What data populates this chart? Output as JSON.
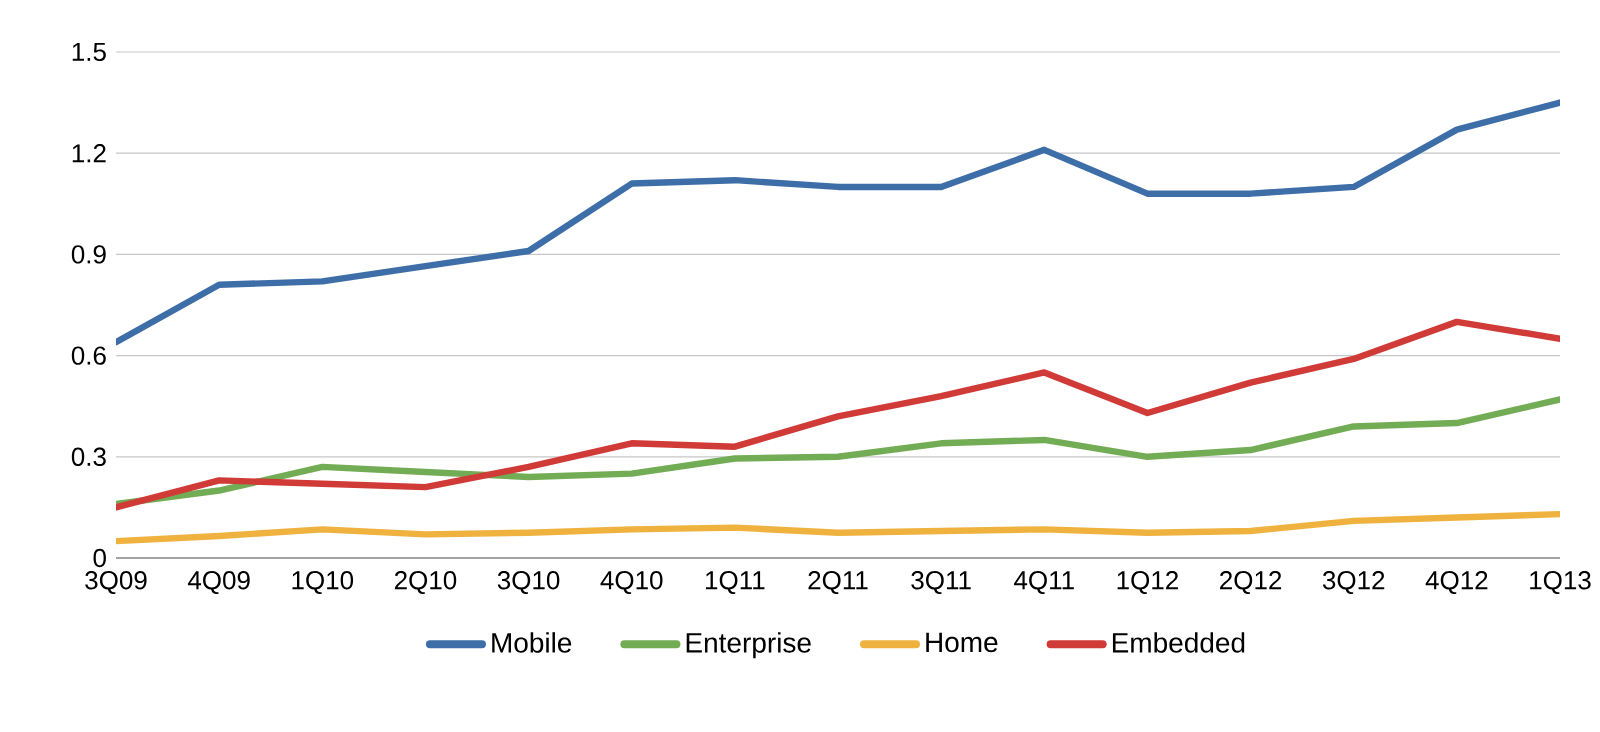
{
  "chart_data": {
    "type": "line",
    "categories": [
      "3Q09",
      "4Q09",
      "1Q10",
      "2Q10",
      "3Q10",
      "4Q10",
      "1Q11",
      "2Q11",
      "3Q11",
      "4Q11",
      "1Q12",
      "2Q12",
      "3Q12",
      "4Q12",
      "1Q13"
    ],
    "series": [
      {
        "name": "Mobile",
        "color": "#3e6ea8",
        "values": [
          0.64,
          0.81,
          0.82,
          0.865,
          0.91,
          1.11,
          1.12,
          1.1,
          1.1,
          1.21,
          1.08,
          1.08,
          1.1,
          1.27,
          1.35
        ]
      },
      {
        "name": "Enterprise",
        "color": "#72ad55",
        "values": [
          0.16,
          0.2,
          0.27,
          0.255,
          0.24,
          0.25,
          0.295,
          0.3,
          0.34,
          0.35,
          0.3,
          0.32,
          0.39,
          0.4,
          0.47
        ]
      },
      {
        "name": "Home",
        "color": "#f0b23e",
        "values": [
          0.05,
          0.065,
          0.085,
          0.07,
          0.075,
          0.085,
          0.09,
          0.075,
          0.08,
          0.085,
          0.075,
          0.08,
          0.11,
          0.12,
          0.13
        ]
      },
      {
        "name": "Embedded",
        "color": "#d03a37",
        "values": [
          0.15,
          0.23,
          0.22,
          0.21,
          0.27,
          0.34,
          0.33,
          0.42,
          0.48,
          0.55,
          0.43,
          0.52,
          0.59,
          0.7,
          0.65
        ]
      }
    ],
    "ylim": [
      0,
      1.5
    ],
    "yticks": [
      0,
      0.3,
      0.6,
      0.9,
      1.2,
      1.5
    ],
    "grid": "y",
    "legend": "bottom",
    "marker": "none",
    "line_style": "solid"
  }
}
